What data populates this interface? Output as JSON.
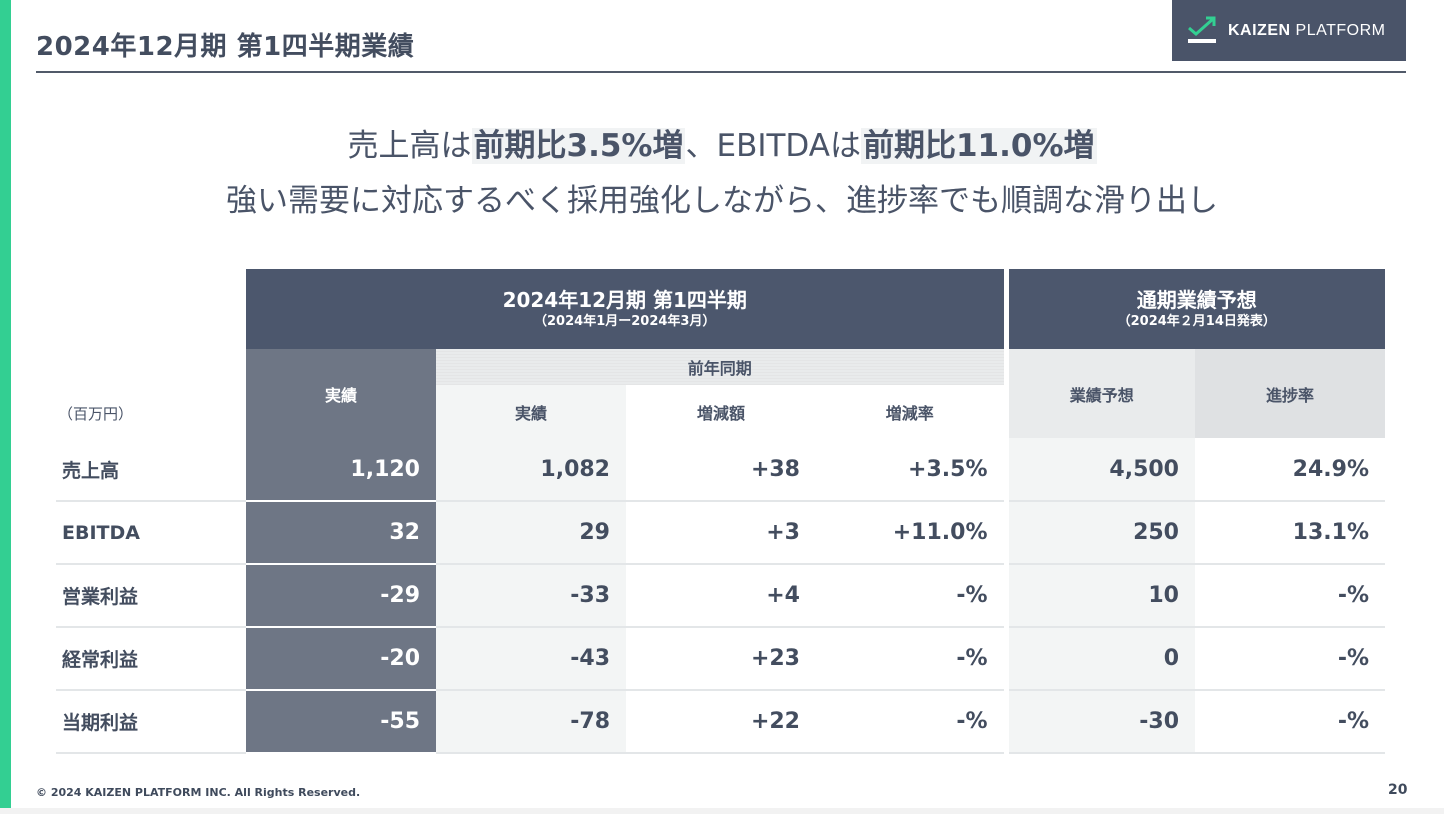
{
  "header": {
    "title": "2024年12月期 第1四半期業績",
    "logo_text_bold": "KAIZEN",
    "logo_text_light": "PLATFORM"
  },
  "headline": {
    "line1_a": "売上高は",
    "line1_b": "前期比3.5%増",
    "line1_c": "、EBITDAは",
    "line1_d": "前期比11.0%増",
    "line2": "強い需要に対応するべく採用強化しながら、進捗率でも順調な滑り出し"
  },
  "table": {
    "unit": "（百万円）",
    "group_q1": "2024年12月期 第1四半期",
    "group_q1_sub": "（2024年1月ー2024年3月）",
    "group_forecast": "通期業績予想",
    "group_forecast_sub": "（2024年２月14日発表）",
    "col_actual": "実績",
    "col_prev_group": "前年同期",
    "col_prev_actual": "実績",
    "col_change": "増減額",
    "col_change_rate": "増減率",
    "col_forecast": "業績予想",
    "col_progress": "進捗率",
    "rows": [
      {
        "label": "売上高",
        "actual": "1,120",
        "prev": "1,082",
        "change": "+38",
        "rate": "+3.5%",
        "forecast": "4,500",
        "progress": "24.9%"
      },
      {
        "label": "EBITDA",
        "actual": "32",
        "prev": "29",
        "change": "+3",
        "rate": "+11.0%",
        "forecast": "250",
        "progress": "13.1%"
      },
      {
        "label": "営業利益",
        "actual": "-29",
        "prev": "-33",
        "change": "+4",
        "rate": "-%",
        "forecast": "10",
        "progress": "-%"
      },
      {
        "label": "経常利益",
        "actual": "-20",
        "prev": "-43",
        "change": "+23",
        "rate": "-%",
        "forecast": "0",
        "progress": "-%"
      },
      {
        "label": "当期利益",
        "actual": "-55",
        "prev": "-78",
        "change": "+22",
        "rate": "-%",
        "forecast": "-30",
        "progress": "-%"
      }
    ]
  },
  "footer": {
    "copyright": "© 2024 KAIZEN PLATFORM INC. All Rights Reserved.",
    "page_number": "20"
  }
}
